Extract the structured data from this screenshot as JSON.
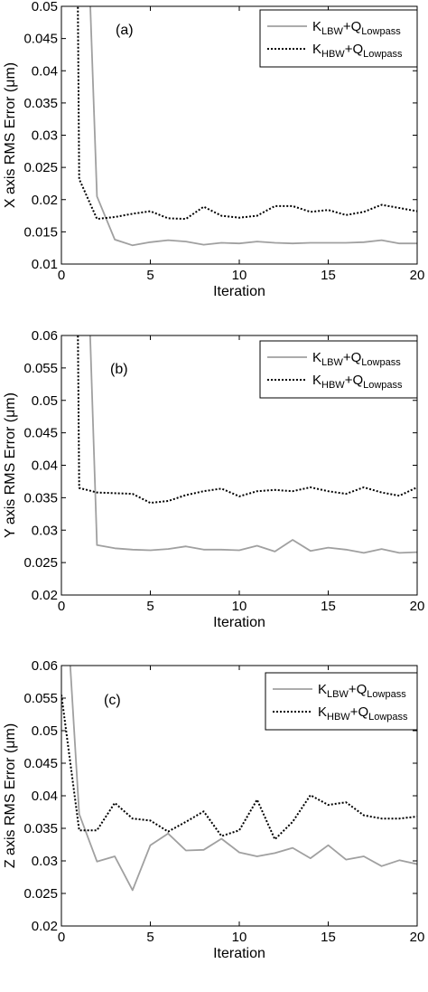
{
  "chart_data": [
    {
      "type": "line",
      "panel_label": "(a)",
      "xlabel": "Iteration",
      "ylabel": "X axis RMS Error (μm)",
      "xlim": [
        0,
        20
      ],
      "ylim": [
        0.01,
        0.05
      ],
      "xticks": [
        "0",
        "5",
        "10",
        "15",
        "20"
      ],
      "yticks": [
        "0.01",
        "0.015",
        "0.02",
        "0.025",
        "0.03",
        "0.035",
        "0.04",
        "0.045",
        "0.05"
      ],
      "legend_position": "top-right",
      "grid": false,
      "series": [
        {
          "name_main_1": "K",
          "name_sub_1": "LBW",
          "name_main_2": "+Q",
          "name_sub_2": "Lowpass",
          "style": "solid",
          "color": "#a0a0a0",
          "x": [
            1.5,
            2,
            3,
            4,
            5,
            6,
            7,
            8,
            9,
            10,
            11,
            12,
            13,
            14,
            15,
            16,
            17,
            18,
            19,
            20
          ],
          "y": [
            0.06,
            0.0205,
            0.0138,
            0.0129,
            0.0134,
            0.0137,
            0.0135,
            0.013,
            0.0133,
            0.0132,
            0.0135,
            0.0133,
            0.0132,
            0.0133,
            0.0133,
            0.0133,
            0.0134,
            0.0137,
            0.0132,
            0.0132
          ]
        },
        {
          "name_main_1": "K",
          "name_sub_1": "HBW",
          "name_main_2": "+Q",
          "name_sub_2": "Lowpass",
          "style": "dotted",
          "color": "#000000",
          "x": [
            0.9,
            1,
            2,
            3,
            4,
            5,
            6,
            7,
            8,
            9,
            10,
            11,
            12,
            13,
            14,
            15,
            16,
            17,
            18,
            19,
            20
          ],
          "y": [
            0.06,
            0.0232,
            0.017,
            0.0173,
            0.0178,
            0.0182,
            0.0171,
            0.017,
            0.0189,
            0.0175,
            0.0172,
            0.0175,
            0.019,
            0.019,
            0.0181,
            0.0184,
            0.0176,
            0.0181,
            0.0192,
            0.0187,
            0.0182
          ]
        }
      ]
    },
    {
      "type": "line",
      "panel_label": "(b)",
      "xlabel": "Iteration",
      "ylabel": "Y axis RMS Error (μm)",
      "xlim": [
        0,
        20
      ],
      "ylim": [
        0.02,
        0.06
      ],
      "xticks": [
        "0",
        "5",
        "10",
        "15",
        "20"
      ],
      "yticks": [
        "0.02",
        "0.025",
        "0.03",
        "0.035",
        "0.04",
        "0.045",
        "0.05",
        "0.055",
        "0.06"
      ],
      "legend_position": "top-right",
      "grid": false,
      "series": [
        {
          "name_main_1": "K",
          "name_sub_1": "LBW",
          "name_main_2": "+Q",
          "name_sub_2": "Lowpass",
          "style": "solid",
          "color": "#a0a0a0",
          "x": [
            1.5,
            2,
            3,
            4,
            5,
            6,
            7,
            8,
            9,
            10,
            11,
            12,
            13,
            14,
            15,
            16,
            17,
            18,
            19,
            20
          ],
          "y": [
            0.07,
            0.0277,
            0.0272,
            0.027,
            0.0269,
            0.0271,
            0.0275,
            0.027,
            0.027,
            0.0269,
            0.0276,
            0.0267,
            0.0285,
            0.0268,
            0.0273,
            0.027,
            0.0265,
            0.0271,
            0.0265,
            0.0266
          ]
        },
        {
          "name_main_1": "K",
          "name_sub_1": "HBW",
          "name_main_2": "+Q",
          "name_sub_2": "Lowpass",
          "style": "dotted",
          "color": "#000000",
          "x": [
            0.9,
            1,
            2,
            3,
            4,
            5,
            6,
            7,
            8,
            9,
            10,
            11,
            12,
            13,
            14,
            15,
            16,
            17,
            18,
            19,
            20
          ],
          "y": [
            0.07,
            0.0365,
            0.0358,
            0.0357,
            0.0356,
            0.0342,
            0.0345,
            0.0354,
            0.036,
            0.0364,
            0.0352,
            0.036,
            0.0362,
            0.036,
            0.0366,
            0.036,
            0.0356,
            0.0366,
            0.0358,
            0.0353,
            0.0366
          ]
        }
      ]
    },
    {
      "type": "line",
      "panel_label": "(c)",
      "xlabel": "Iteration",
      "ylabel": "Z axis RMS Error (μm)",
      "xlim": [
        0,
        20
      ],
      "ylim": [
        0.02,
        0.06
      ],
      "xticks": [
        "0",
        "5",
        "10",
        "15",
        "20"
      ],
      "yticks": [
        "0.02",
        "0.025",
        "0.03",
        "0.035",
        "0.04",
        "0.045",
        "0.05",
        "0.055",
        "0.06"
      ],
      "legend_position": "top-right",
      "grid": false,
      "series": [
        {
          "name_main_1": "K",
          "name_sub_1": "LBW",
          "name_main_2": "+Q",
          "name_sub_2": "Lowpass",
          "style": "solid",
          "color": "#a0a0a0",
          "x": [
            0.5,
            1,
            2,
            3,
            4,
            5,
            6,
            7,
            8,
            9,
            10,
            11,
            12,
            13,
            14,
            15,
            16,
            17,
            18,
            19,
            20
          ],
          "y": [
            0.06,
            0.0372,
            0.0299,
            0.0307,
            0.0255,
            0.0324,
            0.0342,
            0.0316,
            0.0317,
            0.0334,
            0.0313,
            0.0307,
            0.0312,
            0.032,
            0.0304,
            0.0324,
            0.0302,
            0.0307,
            0.0292,
            0.0301,
            0.0295
          ]
        },
        {
          "name_main_1": "K",
          "name_sub_1": "HBW",
          "name_main_2": "+Q",
          "name_sub_2": "Lowpass",
          "style": "dotted",
          "color": "#000000",
          "x": [
            0,
            1,
            2,
            3,
            4,
            5,
            6,
            7,
            8,
            9,
            10,
            11,
            12,
            13,
            14,
            15,
            16,
            17,
            18,
            19,
            20
          ],
          "y": [
            0.0555,
            0.0347,
            0.0347,
            0.0389,
            0.0365,
            0.0362,
            0.0345,
            0.036,
            0.0376,
            0.0338,
            0.0347,
            0.0394,
            0.0333,
            0.036,
            0.0401,
            0.0386,
            0.039,
            0.037,
            0.0365,
            0.0365,
            0.0368
          ]
        }
      ]
    }
  ]
}
